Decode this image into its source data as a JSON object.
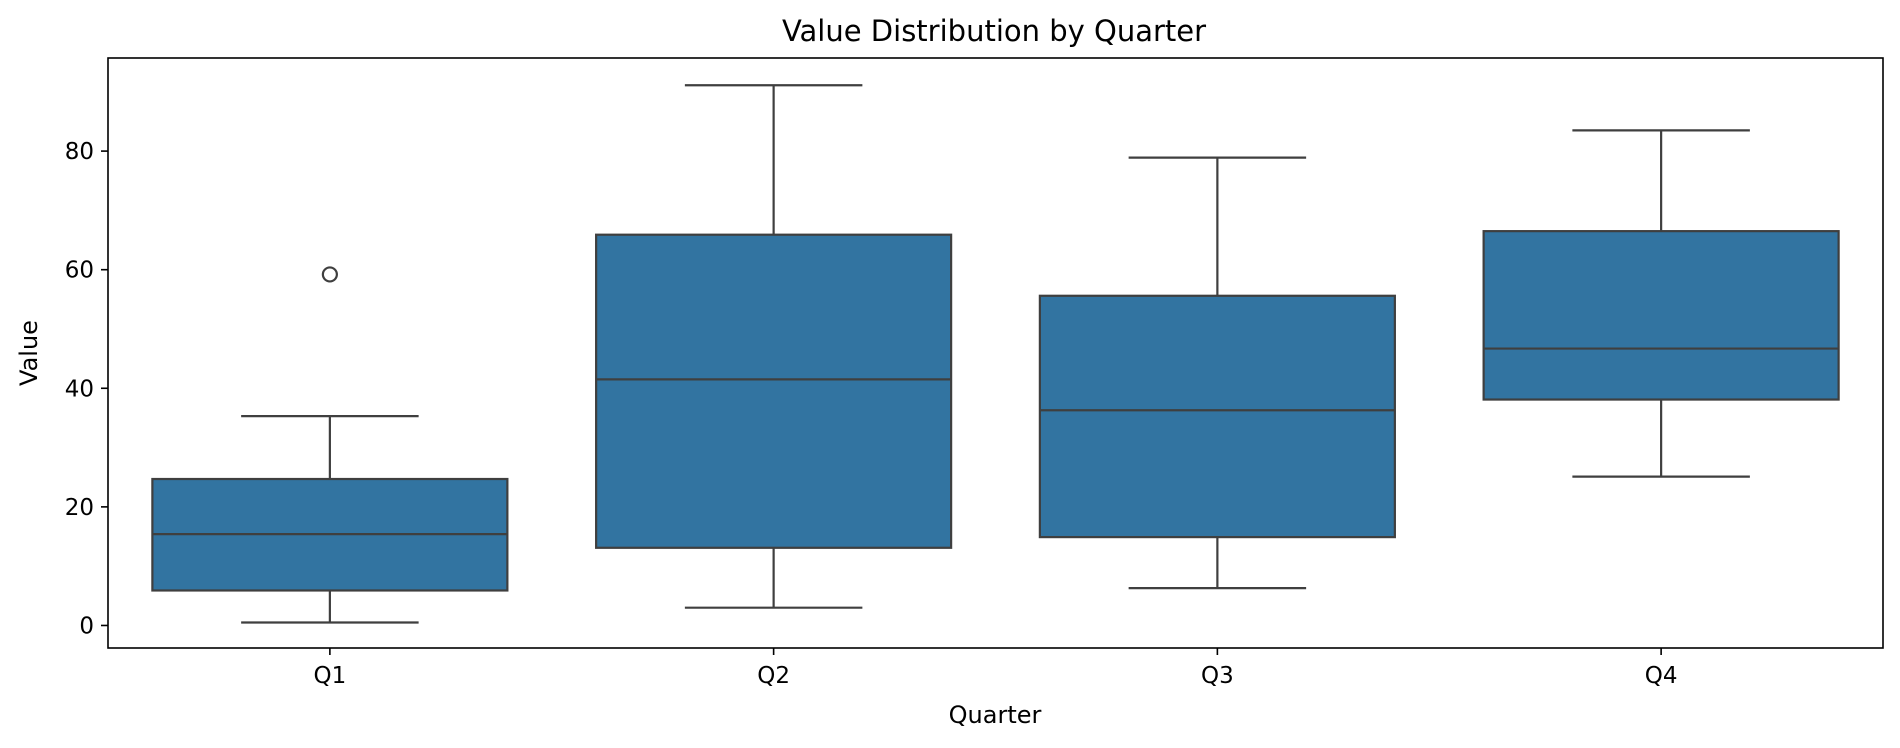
{
  "chart_data": {
    "type": "box",
    "title": "Value Distribution by Quarter",
    "xlabel": "Quarter",
    "ylabel": "Value",
    "categories": [
      "Q1",
      "Q2",
      "Q3",
      "Q4"
    ],
    "yticks": [
      0,
      20,
      40,
      60,
      80
    ],
    "ylim": [
      -3.8,
      95.7
    ],
    "box_color": "#3274a1",
    "line_color": "#3f3f3f",
    "boxes": [
      {
        "category": "Q1",
        "whisker_low": 0.5,
        "q1": 5.9,
        "median": 15.4,
        "q3": 24.7,
        "whisker_high": 35.3,
        "outliers": [
          59.2
        ]
      },
      {
        "category": "Q2",
        "whisker_low": 3.0,
        "q1": 13.1,
        "median": 41.5,
        "q3": 65.9,
        "whisker_high": 91.1,
        "outliers": []
      },
      {
        "category": "Q3",
        "whisker_low": 6.3,
        "q1": 14.9,
        "median": 36.3,
        "q3": 55.6,
        "whisker_high": 78.9,
        "outliers": []
      },
      {
        "category": "Q4",
        "whisker_low": 25.1,
        "q1": 38.1,
        "median": 46.7,
        "q3": 66.5,
        "whisker_high": 83.5,
        "outliers": []
      }
    ],
    "grid": false,
    "legend": "none"
  }
}
